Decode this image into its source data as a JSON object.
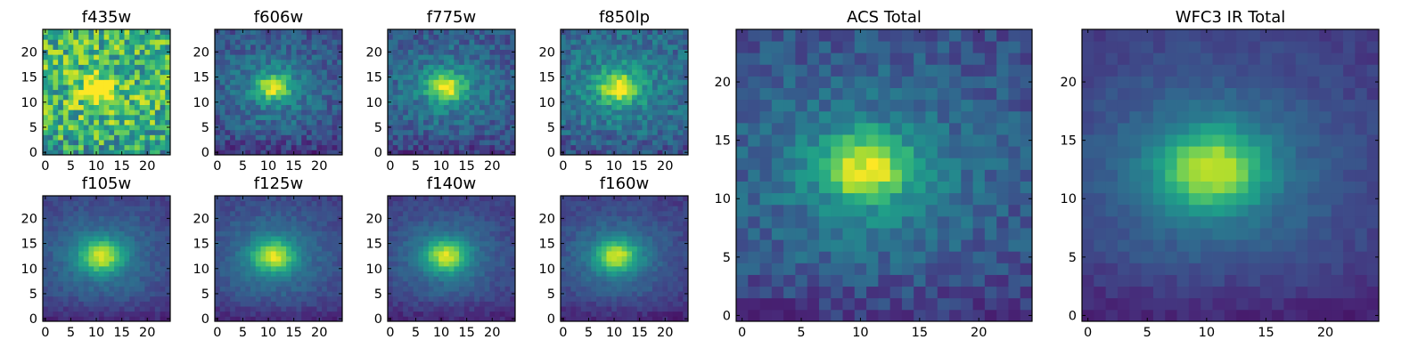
{
  "figure": {
    "colormap": "viridis",
    "colormap_stops": [
      "#440154",
      "#482878",
      "#3e4a89",
      "#31688e",
      "#26828e",
      "#1f9e89",
      "#35b779",
      "#6ece58",
      "#b5de2b",
      "#fde725"
    ],
    "frame_color": "#000000"
  },
  "chart_data": [
    {
      "type": "heatmap",
      "title": "f435w",
      "grid_size": 25,
      "xlim": [
        -0.5,
        24.5
      ],
      "ylim": [
        -0.5,
        24.5
      ],
      "x_ticks": [
        0,
        5,
        10,
        15,
        20
      ],
      "y_ticks": [
        0,
        5,
        10,
        15,
        20
      ],
      "peak": [
        10.5,
        12.5
      ],
      "core_width": 1.6,
      "halo_width": 6.0,
      "background": 0.62,
      "noise": 0.28,
      "seed": 11
    },
    {
      "type": "heatmap",
      "title": "f606w",
      "grid_size": 25,
      "xlim": [
        -0.5,
        24.5
      ],
      "ylim": [
        -0.5,
        24.5
      ],
      "x_ticks": [
        0,
        5,
        10,
        15,
        20
      ],
      "y_ticks": [
        0,
        5,
        10,
        15,
        20
      ],
      "peak": [
        11,
        13
      ],
      "core_width": 1.8,
      "halo_width": 6.5,
      "background": 0.22,
      "noise": 0.12,
      "seed": 23
    },
    {
      "type": "heatmap",
      "title": "f775w",
      "grid_size": 25,
      "xlim": [
        -0.5,
        24.5
      ],
      "ylim": [
        -0.5,
        24.5
      ],
      "x_ticks": [
        0,
        5,
        10,
        15,
        20
      ],
      "y_ticks": [
        0,
        5,
        10,
        15,
        20
      ],
      "peak": [
        11,
        13
      ],
      "core_width": 1.9,
      "halo_width": 6.5,
      "background": 0.24,
      "noise": 0.12,
      "seed": 37
    },
    {
      "type": "heatmap",
      "title": "f850lp",
      "grid_size": 25,
      "xlim": [
        -0.5,
        24.5
      ],
      "ylim": [
        -0.5,
        24.5
      ],
      "x_ticks": [
        0,
        5,
        10,
        15,
        20
      ],
      "y_ticks": [
        0,
        5,
        10,
        15,
        20
      ],
      "peak": [
        11,
        13
      ],
      "core_width": 2.0,
      "halo_width": 6.5,
      "background": 0.3,
      "noise": 0.13,
      "seed": 41
    },
    {
      "type": "heatmap",
      "title": "f105w",
      "grid_size": 25,
      "xlim": [
        -0.5,
        24.5
      ],
      "ylim": [
        -0.5,
        24.5
      ],
      "x_ticks": [
        0,
        5,
        10,
        15,
        20
      ],
      "y_ticks": [
        0,
        5,
        10,
        15,
        20
      ],
      "peak": [
        11,
        12.5
      ],
      "core_width": 2.2,
      "halo_width": 6.5,
      "background": 0.18,
      "noise": 0.05,
      "seed": 53
    },
    {
      "type": "heatmap",
      "title": "f125w",
      "grid_size": 25,
      "xlim": [
        -0.5,
        24.5
      ],
      "ylim": [
        -0.5,
        24.5
      ],
      "x_ticks": [
        0,
        5,
        10,
        15,
        20
      ],
      "y_ticks": [
        0,
        5,
        10,
        15,
        20
      ],
      "peak": [
        11,
        12.5
      ],
      "core_width": 2.2,
      "halo_width": 6.5,
      "background": 0.18,
      "noise": 0.05,
      "seed": 67
    },
    {
      "type": "heatmap",
      "title": "f140w",
      "grid_size": 25,
      "xlim": [
        -0.5,
        24.5
      ],
      "ylim": [
        -0.5,
        24.5
      ],
      "x_ticks": [
        0,
        5,
        10,
        15,
        20
      ],
      "y_ticks": [
        0,
        5,
        10,
        15,
        20
      ],
      "peak": [
        11,
        12.5
      ],
      "core_width": 2.2,
      "halo_width": 6.5,
      "background": 0.16,
      "noise": 0.05,
      "seed": 71
    },
    {
      "type": "heatmap",
      "title": "f160w",
      "grid_size": 25,
      "xlim": [
        -0.5,
        24.5
      ],
      "ylim": [
        -0.5,
        24.5
      ],
      "x_ticks": [
        0,
        5,
        10,
        15,
        20
      ],
      "y_ticks": [
        0,
        5,
        10,
        15,
        20
      ],
      "peak": [
        10.5,
        12.5
      ],
      "core_width": 2.2,
      "halo_width": 6.5,
      "background": 0.16,
      "noise": 0.05,
      "seed": 83
    },
    {
      "type": "heatmap",
      "title": "ACS Total",
      "grid_size": 25,
      "xlim": [
        -0.5,
        24.5
      ],
      "ylim": [
        -0.5,
        24.5
      ],
      "x_ticks": [
        0,
        5,
        10,
        15,
        20
      ],
      "y_ticks": [
        0,
        5,
        10,
        15,
        20
      ],
      "peak": [
        10.5,
        12.5
      ],
      "core_width": 2.0,
      "halo_width": 6.5,
      "background": 0.22,
      "noise": 0.1,
      "seed": 97
    },
    {
      "type": "heatmap",
      "title": "WFC3 IR Total",
      "grid_size": 25,
      "xlim": [
        -0.5,
        24.5
      ],
      "ylim": [
        -0.5,
        24.5
      ],
      "x_ticks": [
        0,
        5,
        10,
        15,
        20
      ],
      "y_ticks": [
        0,
        5,
        10,
        15,
        20
      ],
      "peak": [
        10.5,
        12.5
      ],
      "core_width": 2.3,
      "halo_width": 6.5,
      "background": 0.16,
      "noise": 0.04,
      "seed": 101
    }
  ]
}
